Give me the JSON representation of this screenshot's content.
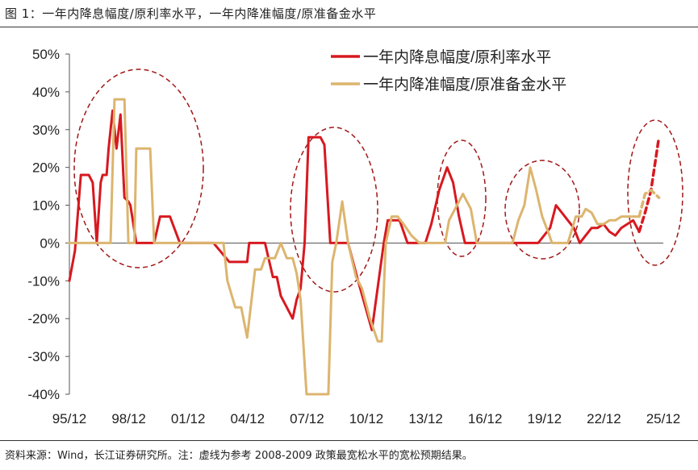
{
  "figure_title": "图 1：一年内降息幅度/原利率水平，一年内降准幅度/原准备金水平",
  "source_note": "资料来源：Wind，长江证券研究所。注：虚线为参考 2008-2009 政策最宽松水平的宽松预期结果。",
  "chart_data": {
    "type": "line",
    "title": "",
    "xlabel": "",
    "ylabel": "",
    "ylim": [
      -0.4,
      0.5
    ],
    "y_ticks": [
      0.5,
      0.4,
      0.3,
      0.2,
      0.1,
      0.0,
      -0.1,
      -0.2,
      -0.3,
      -0.4
    ],
    "y_tick_labels": [
      "50%",
      "40%",
      "30%",
      "20%",
      "10%",
      "0%",
      "-10%",
      "-20%",
      "-30%",
      "-40%"
    ],
    "x_tick_labels": [
      "95/12",
      "98/12",
      "01/12",
      "04/12",
      "07/12",
      "10/12",
      "13/12",
      "16/12",
      "19/12",
      "22/12",
      "25/12"
    ],
    "x_ticks": [
      1995.92,
      1998.92,
      2001.92,
      2004.92,
      2007.92,
      2010.92,
      2013.92,
      2016.92,
      2019.92,
      2022.92,
      2025.92
    ],
    "grid": false,
    "legend_position": "top-right",
    "colors": {
      "rate": "#d71920",
      "rrr": "#dcb56e",
      "ellipse": "#a01818"
    },
    "series": [
      {
        "name": "一年内降息幅度/原利率水平",
        "color": "#d71920",
        "x": [
          1995.92,
          1996.2,
          1996.5,
          1996.6,
          1996.7,
          1996.9,
          1997.1,
          1997.3,
          1997.5,
          1997.6,
          1997.8,
          1997.9,
          1998.1,
          1998.3,
          1998.5,
          1998.7,
          1998.9,
          1999.0,
          1999.3,
          1999.5,
          1999.6,
          1999.8,
          2000.0,
          2000.2,
          2000.5,
          2001.0,
          2001.5,
          2002.0,
          2002.2,
          2002.3,
          2002.5,
          2002.9,
          2003.0,
          2003.2,
          2004.0,
          2004.5,
          2004.9,
          2005.0,
          2005.3,
          2005.8,
          2006.2,
          2006.4,
          2006.6,
          2006.9,
          2007.2,
          2007.4,
          2007.6,
          2007.8,
          2008.0,
          2008.3,
          2008.6,
          2008.8,
          2009.1,
          2009.2,
          2009.5,
          2009.7,
          2010.0,
          2010.5,
          2011.2,
          2011.8,
          2012.0,
          2012.3,
          2012.5,
          2012.6,
          2013.0,
          2013.5,
          2013.9,
          2014.2,
          2014.6,
          2015.0,
          2015.3,
          2015.6,
          2015.9,
          2016.2,
          2016.5,
          2016.8,
          2017.0,
          2017.5,
          2018.0,
          2018.5,
          2019.0,
          2019.4,
          2019.6,
          2019.9,
          2020.2,
          2020.5,
          2020.8,
          2021.1,
          2021.4,
          2021.7,
          2022.0,
          2022.3,
          2022.6,
          2022.9,
          2023.2,
          2023.5,
          2023.8,
          2024.1,
          2024.4,
          2024.7
        ],
        "y": [
          -0.1,
          -0.02,
          0.18,
          0.18,
          0.18,
          0.18,
          0.16,
          0.0,
          0.16,
          0.18,
          0.18,
          0.25,
          0.35,
          0.25,
          0.34,
          0.12,
          0.11,
          0.1,
          0.0,
          0.0,
          0.0,
          0.0,
          0.0,
          0.0,
          0.07,
          0.07,
          0.0,
          0.0,
          0.0,
          0.0,
          0.0,
          0.0,
          0.0,
          0.0,
          -0.05,
          -0.05,
          -0.05,
          0.0,
          0.0,
          0.0,
          -0.09,
          -0.09,
          -0.14,
          -0.17,
          -0.2,
          -0.15,
          -0.12,
          0.0,
          0.28,
          0.28,
          0.28,
          0.26,
          0.0,
          0.0,
          0.0,
          0.0,
          0.0,
          -0.1,
          -0.23,
          0.0,
          0.06,
          0.06,
          0.06,
          0.06,
          0.0,
          0.0,
          0.0,
          0.05,
          0.14,
          0.2,
          0.16,
          0.07,
          0.0,
          0.0,
          0.0,
          0.0,
          0.0,
          0.0,
          0.0,
          0.0,
          0.0,
          0.0,
          0.0,
          0.02,
          0.04,
          0.1,
          0.08,
          0.06,
          0.04,
          0.0,
          0.02,
          0.04,
          0.04,
          0.05,
          0.03,
          0.02,
          0.04,
          0.05,
          0.06,
          0.03
        ]
      },
      {
        "name": "一年内降准幅度/原准备金水平",
        "color": "#dcb56e",
        "x": [
          1995.92,
          1996.5,
          1997.0,
          1997.7,
          1998.0,
          1998.2,
          1998.3,
          1998.6,
          1998.7,
          1998.9,
          1999.0,
          1999.1,
          1999.2,
          1999.3,
          1999.7,
          2000.0,
          2000.2,
          2000.3,
          2000.6,
          2001.0,
          2002.0,
          2003.0,
          2003.5,
          2003.7,
          2003.9,
          2004.3,
          2004.5,
          2004.6,
          2004.9,
          2005.3,
          2005.6,
          2005.8,
          2006.3,
          2006.6,
          2006.9,
          2007.2,
          2007.4,
          2007.6,
          2007.9,
          2008.2,
          2008.3,
          2008.5,
          2008.7,
          2009.0,
          2009.2,
          2009.4,
          2009.7,
          2010.0,
          2010.4,
          2010.7,
          2011.1,
          2011.5,
          2011.7,
          2011.9,
          2012.2,
          2012.5,
          2012.8,
          2013.2,
          2013.6,
          2014.2,
          2014.9,
          2015.1,
          2015.4,
          2015.8,
          2016.2,
          2016.5,
          2017.0,
          2017.5,
          2018.0,
          2018.3,
          2018.6,
          2018.9,
          2019.2,
          2019.5,
          2019.8,
          2020.1,
          2020.3,
          2020.5,
          2020.7,
          2020.9,
          2021.1,
          2021.5,
          2021.8,
          2022.0,
          2022.3,
          2022.6,
          2022.9,
          2023.2,
          2023.5,
          2023.8,
          2024.1,
          2024.4,
          2024.7
        ],
        "y": [
          0.0,
          0.0,
          0.0,
          0.0,
          0.0,
          0.38,
          0.38,
          0.38,
          0.38,
          0.0,
          0.0,
          0.0,
          0.0,
          0.25,
          0.25,
          0.25,
          0.0,
          0.0,
          0.0,
          0.0,
          0.0,
          0.0,
          0.0,
          0.0,
          -0.1,
          -0.17,
          -0.17,
          -0.17,
          -0.25,
          -0.07,
          -0.07,
          -0.04,
          -0.04,
          0.0,
          -0.04,
          -0.04,
          -0.08,
          -0.15,
          -0.4,
          -0.4,
          -0.4,
          -0.4,
          -0.4,
          -0.4,
          -0.05,
          0.0,
          0.11,
          0.0,
          -0.09,
          -0.12,
          -0.2,
          -0.26,
          -0.26,
          0.0,
          0.07,
          0.07,
          0.05,
          0.02,
          0.0,
          0.0,
          0.0,
          0.06,
          0.09,
          0.13,
          0.09,
          0.0,
          0.0,
          0.0,
          0.0,
          0.0,
          0.06,
          0.1,
          0.2,
          0.14,
          0.07,
          0.03,
          0.0,
          0.0,
          0.0,
          0.0,
          0.0,
          0.07,
          0.07,
          0.09,
          0.08,
          0.05,
          0.05,
          0.06,
          0.06,
          0.07,
          0.07,
          0.07,
          0.07
        ]
      },
      {
        "name": "",
        "color": "#d71920",
        "dashed": true,
        "x": [
          2024.7,
          2025.0,
          2025.3,
          2025.5,
          2025.7
        ],
        "y": [
          0.03,
          0.08,
          0.14,
          0.21,
          0.28
        ]
      },
      {
        "name": "",
        "color": "#dcb56e",
        "dashed": true,
        "x": [
          2024.7,
          2025.0,
          2025.3,
          2025.7
        ],
        "y": [
          0.07,
          0.13,
          0.14,
          0.12
        ]
      }
    ]
  }
}
